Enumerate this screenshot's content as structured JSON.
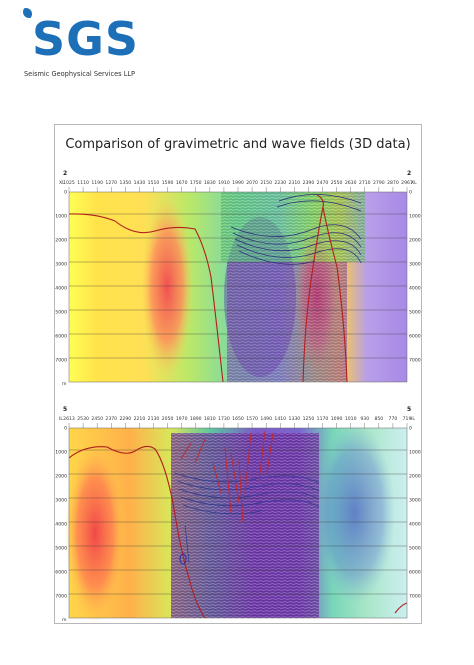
{
  "logo": {
    "text": "SGS",
    "tagline": "Seismic Geophysical Services LLP"
  },
  "figure": {
    "title": "Comparison of gravimetric and wave fields (3D data)",
    "panels": [
      {
        "section_label": "2",
        "axis_left_label": "XL",
        "axis_right_label": "XL",
        "top_ticks": [
          "1025",
          "1110",
          "1190",
          "1270",
          "1350",
          "1430",
          "1510",
          "1590",
          "1670",
          "1750",
          "1830",
          "1910",
          "1990",
          "2070",
          "2150",
          "2230",
          "2310",
          "2390",
          "2470",
          "2550",
          "2630",
          "2710",
          "2790",
          "2870",
          "2967"
        ],
        "depth_ticks": [
          "0",
          "1000",
          "2000",
          "3000",
          "4000",
          "5000",
          "6000",
          "7000"
        ],
        "depth_unit": "m"
      },
      {
        "section_label": "5",
        "axis_left_label": "IL",
        "axis_right_label": "IL",
        "top_ticks": [
          "2613",
          "2530",
          "2450",
          "2370",
          "2290",
          "2210",
          "2130",
          "2050",
          "1970",
          "1890",
          "1810",
          "1730",
          "1650",
          "1570",
          "1490",
          "1410",
          "1330",
          "1250",
          "1170",
          "1090",
          "1010",
          "930",
          "850",
          "770",
          "719"
        ],
        "depth_ticks": [
          "0",
          "1000",
          "2000",
          "3000",
          "4000",
          "5000",
          "6000",
          "7000"
        ],
        "depth_unit": "m"
      }
    ]
  }
}
